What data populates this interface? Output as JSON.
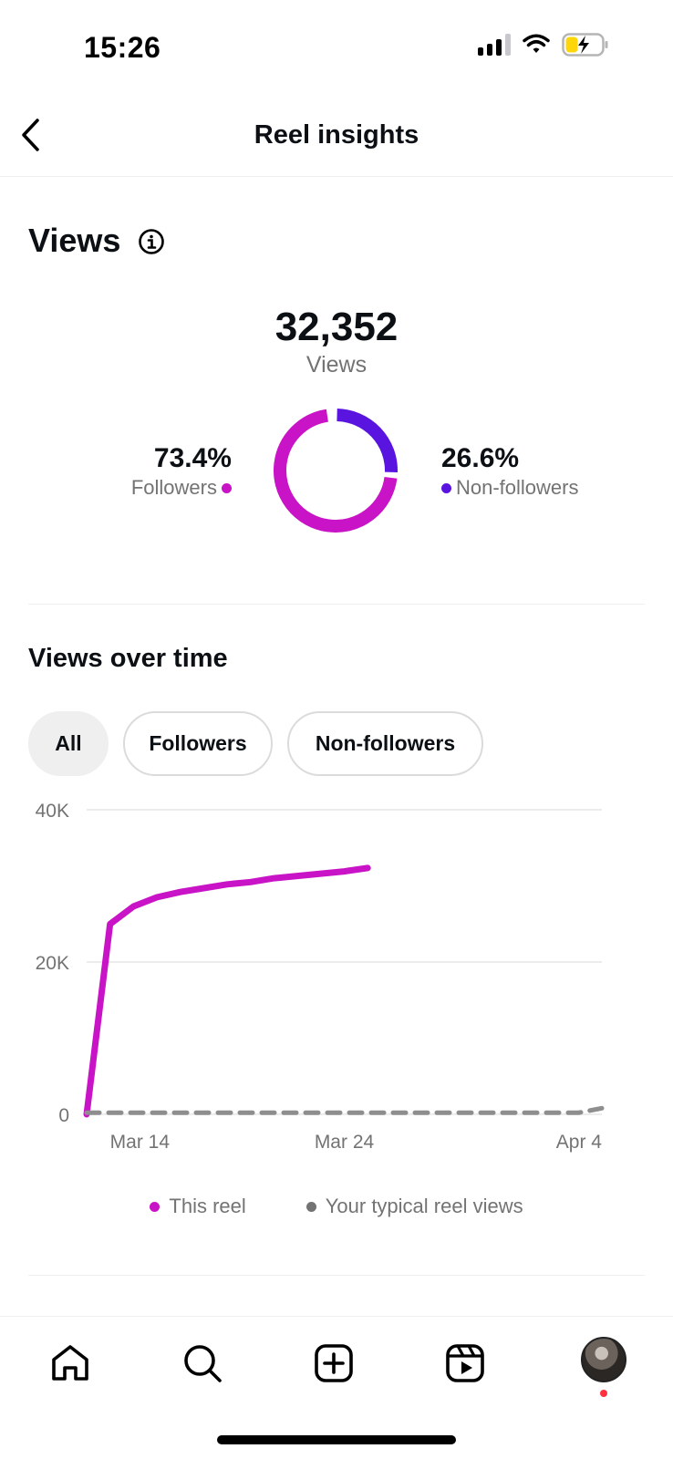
{
  "status_bar": {
    "time": "15:26"
  },
  "header": {
    "title": "Reel insights"
  },
  "views": {
    "title": "Views",
    "total": "32,352",
    "total_label": "Views",
    "followers_pct": "73.4%",
    "followers_label": "Followers",
    "nonfollowers_pct": "26.6%",
    "nonfollowers_label": "Non-followers"
  },
  "views_over_time": {
    "title": "Views over time",
    "filters": [
      "All",
      "Followers",
      "Non-followers"
    ],
    "selected_filter": "All"
  },
  "colors": {
    "followers": "#c913c6",
    "nonfollowers": "#5a14e0",
    "typical": "#8e8e8e",
    "grid": "#e6e6e6"
  },
  "chart_data": {
    "type": "line",
    "ylim": [
      0,
      40000
    ],
    "y_ticks": [
      "0",
      "20K",
      "40K"
    ],
    "x_ticks": [
      "Mar 14",
      "Mar 24",
      "Apr 4"
    ],
    "x_range": [
      "Mar 13",
      "Apr 4"
    ],
    "series": [
      {
        "name": "This reel",
        "style": "solid",
        "x": [
          "Mar 13",
          "Mar 14",
          "Mar 15",
          "Mar 16",
          "Mar 17",
          "Mar 18",
          "Mar 19",
          "Mar 20",
          "Mar 21",
          "Mar 22",
          "Mar 23",
          "Mar 24",
          "Mar 25"
        ],
        "values": [
          0,
          25000,
          27300,
          28500,
          29200,
          29700,
          30200,
          30500,
          31000,
          31300,
          31600,
          31900,
          32352
        ]
      },
      {
        "name": "Your typical reel views",
        "style": "dashed",
        "x": [
          "Mar 13",
          "Mar 20",
          "Mar 27",
          "Apr 3",
          "Apr 4"
        ],
        "values": [
          200,
          200,
          200,
          200,
          800
        ]
      }
    ],
    "legend": [
      "This reel",
      "Your typical reel views"
    ]
  },
  "tabbar": {
    "items": [
      "home-icon",
      "search-icon",
      "create-icon",
      "reels-icon",
      "profile-avatar"
    ]
  }
}
